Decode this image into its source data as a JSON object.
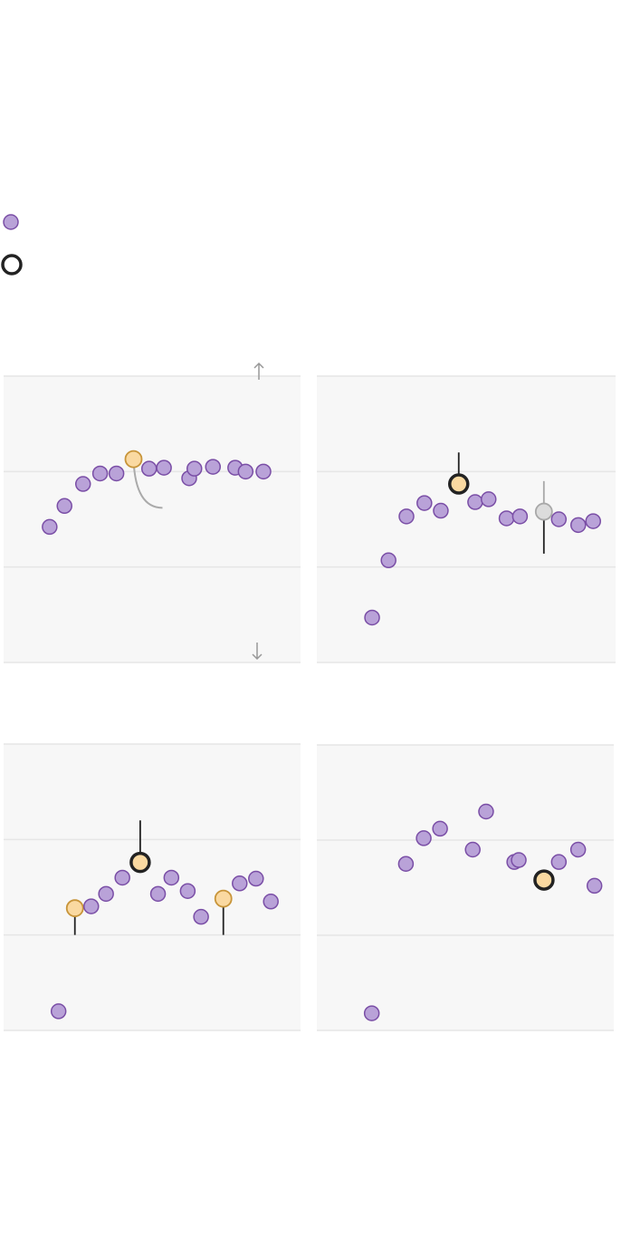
{
  "legend": {
    "items": [
      {
        "symbol": "purple-dot"
      },
      {
        "symbol": "highlight-ring"
      }
    ]
  },
  "colors": {
    "dot_fill": "#b9a2d8",
    "dot_stroke": "#7a4ea6",
    "highlight_fill": "#fad9a1",
    "highlight_stroke": "#c8953a",
    "ring_stroke": "#222222",
    "gray_fill": "#dcdcdc",
    "gray_stroke": "#a8a8a8",
    "panel_bg": "#f7f7f7",
    "gridline": "#e6e6e6",
    "annotation": "#aaaaaa",
    "whisker": "#222222"
  },
  "icons": [
    "arrow-up-icon",
    "arrow-down-icon"
  ],
  "chart_data": [
    {
      "type": "scatter",
      "panel": "top-left",
      "ylim": [
        0,
        3
      ],
      "grid": true,
      "gridlines_y": [
        1,
        2
      ],
      "arrow": "up",
      "points": [
        {
          "x": 3.1,
          "y": 1.42
        },
        {
          "x": 4.1,
          "y": 1.64
        },
        {
          "x": 5.35,
          "y": 1.87
        },
        {
          "x": 6.5,
          "y": 1.98
        },
        {
          "x": 7.6,
          "y": 1.98
        },
        {
          "x": 8.75,
          "y": 2.13,
          "style": "highlight",
          "curve_to": {
            "x": 10.7,
            "y": 1.62
          }
        },
        {
          "x": 9.8,
          "y": 2.03
        },
        {
          "x": 10.8,
          "y": 2.04
        },
        {
          "x": 12.5,
          "y": 1.93
        },
        {
          "x": 12.85,
          "y": 2.03
        },
        {
          "x": 14.1,
          "y": 2.05
        },
        {
          "x": 15.6,
          "y": 2.04
        },
        {
          "x": 16.3,
          "y": 2.0
        },
        {
          "x": 17.5,
          "y": 2.0
        }
      ]
    },
    {
      "type": "scatter",
      "panel": "top-right",
      "ylim": [
        0,
        3
      ],
      "grid": true,
      "gridlines_y": [
        1,
        2
      ],
      "points": [
        {
          "x": 3.7,
          "y": 0.47
        },
        {
          "x": 4.8,
          "y": 1.07
        },
        {
          "x": 6.0,
          "y": 1.53
        },
        {
          "x": 7.2,
          "y": 1.67
        },
        {
          "x": 8.3,
          "y": 1.59
        },
        {
          "x": 9.5,
          "y": 1.87,
          "style": "ring",
          "whisker_top": 2.2
        },
        {
          "x": 10.6,
          "y": 1.68
        },
        {
          "x": 11.5,
          "y": 1.71
        },
        {
          "x": 12.7,
          "y": 1.51
        },
        {
          "x": 13.6,
          "y": 1.53
        },
        {
          "x": 15.2,
          "y": 1.58,
          "style": "gray",
          "whisker_top": 1.9,
          "whisker_bottom": 1.14
        },
        {
          "x": 16.2,
          "y": 1.5
        },
        {
          "x": 17.5,
          "y": 1.44
        },
        {
          "x": 18.5,
          "y": 1.48
        }
      ]
    },
    {
      "type": "scatter",
      "panel": "bottom-left",
      "ylim": [
        0,
        3
      ],
      "grid": true,
      "gridlines_y": [
        1,
        2
      ],
      "arrow": "down",
      "points": [
        {
          "x": 3.7,
          "y": 0.2
        },
        {
          "x": 4.8,
          "y": 1.28,
          "style": "highlight",
          "whisker_bottom": 1.0
        },
        {
          "x": 5.9,
          "y": 1.3
        },
        {
          "x": 6.9,
          "y": 1.43
        },
        {
          "x": 8.0,
          "y": 1.6
        },
        {
          "x": 9.2,
          "y": 1.76,
          "style": "ring",
          "whisker_top": 2.2
        },
        {
          "x": 10.4,
          "y": 1.43
        },
        {
          "x": 11.3,
          "y": 1.6
        },
        {
          "x": 12.4,
          "y": 1.46
        },
        {
          "x": 13.3,
          "y": 1.19
        },
        {
          "x": 14.8,
          "y": 1.38,
          "style": "highlight",
          "whisker_bottom": 1.0
        },
        {
          "x": 15.9,
          "y": 1.54
        },
        {
          "x": 17.0,
          "y": 1.59
        },
        {
          "x": 18.0,
          "y": 1.35
        }
      ]
    },
    {
      "type": "scatter",
      "panel": "bottom-right",
      "ylim": [
        0,
        3
      ],
      "grid": true,
      "gridlines_y": [
        1,
        2
      ],
      "points": [
        {
          "x": 3.7,
          "y": 0.18
        },
        {
          "x": 6.0,
          "y": 1.75
        },
        {
          "x": 7.2,
          "y": 2.02
        },
        {
          "x": 8.3,
          "y": 2.12
        },
        {
          "x": 10.5,
          "y": 1.9
        },
        {
          "x": 11.4,
          "y": 2.3
        },
        {
          "x": 13.3,
          "y": 1.77
        },
        {
          "x": 13.6,
          "y": 1.79
        },
        {
          "x": 15.3,
          "y": 1.58,
          "style": "ring"
        },
        {
          "x": 16.3,
          "y": 1.77
        },
        {
          "x": 17.6,
          "y": 1.9
        },
        {
          "x": 18.7,
          "y": 1.52
        }
      ]
    }
  ]
}
